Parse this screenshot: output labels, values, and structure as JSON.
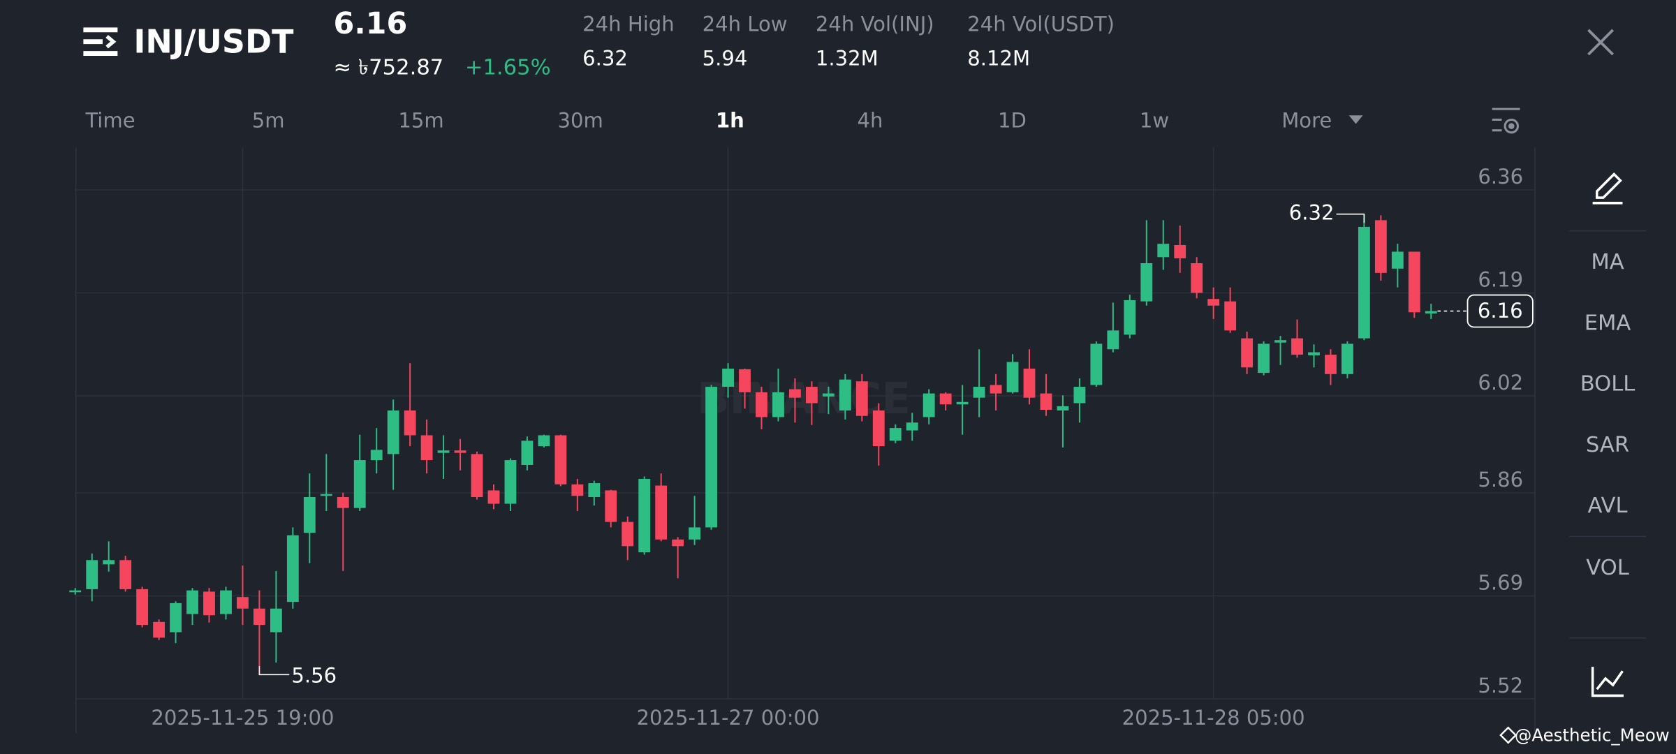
{
  "header": {
    "pair": "INJ/USDT",
    "price": "6.16",
    "fiat_price": "≈ ৳752.87",
    "change": "+1.65%",
    "stats": [
      {
        "label": "24h High",
        "value": "6.32"
      },
      {
        "label": "24h Low",
        "value": "5.94"
      },
      {
        "label": "24h Vol(INJ)",
        "value": "1.32M"
      },
      {
        "label": "24h Vol(USDT)",
        "value": "8.12M"
      }
    ]
  },
  "timeframes": [
    "Time",
    "5m",
    "15m",
    "30m",
    "1h",
    "4h",
    "1D",
    "1w",
    "More"
  ],
  "indicators": [
    "MA",
    "EMA",
    "BOLL",
    "SAR",
    "AVL",
    "VOL"
  ],
  "chart_watermark": "BINANCE",
  "credit": "@Aesthetic_Meow",
  "chart_data": {
    "type": "candlestick",
    "up_color": "#2ebd85",
    "down_color": "#f6465d",
    "grid": true,
    "ylim": [
      5.52,
      6.43
    ],
    "yticks": [
      5.52,
      5.69,
      5.86,
      6.02,
      6.19,
      6.36
    ],
    "categories": [
      null,
      null,
      null,
      null,
      null,
      null,
      null,
      null,
      null,
      null,
      "2025-11-25 19:00",
      null,
      null,
      null,
      null,
      null,
      null,
      null,
      null,
      null,
      null,
      null,
      null,
      null,
      null,
      null,
      null,
      null,
      null,
      null,
      null,
      null,
      null,
      null,
      null,
      null,
      null,
      null,
      null,
      "2025-11-27 00:00",
      null,
      null,
      null,
      null,
      null,
      null,
      null,
      null,
      null,
      null,
      null,
      null,
      null,
      null,
      null,
      null,
      null,
      null,
      null,
      null,
      null,
      null,
      null,
      null,
      null,
      null,
      null,
      null,
      "2025-11-28 05:00",
      null,
      null,
      null,
      null,
      null,
      null,
      null,
      null,
      null,
      null,
      null,
      null,
      null
    ],
    "open": [
      5.696,
      5.701,
      5.742,
      5.749,
      5.701,
      5.647,
      5.63,
      5.66,
      5.697,
      5.66,
      5.688,
      5.669,
      5.63,
      5.68,
      5.794,
      5.855,
      5.853,
      5.835,
      5.914,
      5.924,
      5.996,
      5.955,
      5.926,
      5.93,
      5.924,
      5.864,
      5.842,
      5.906,
      5.937,
      5.955,
      5.874,
      5.853,
      5.864,
      5.812,
      5.762,
      5.872,
      5.783,
      5.783,
      5.803,
      6.035,
      6.064,
      6.026,
      5.985,
      6.031,
      6.035,
      6.019,
      5.996,
      6.044,
      5.996,
      5.946,
      5.963,
      5.985,
      6.024,
      6.006,
      6.017,
      6.038,
      6.026,
      6.065,
      6.024,
      5.996,
      6.008,
      6.038,
      6.097,
      6.121,
      6.176,
      6.249,
      6.269,
      6.239,
      6.18,
      6.176,
      6.115,
      6.058,
      6.108,
      6.115,
      6.087,
      6.088,
      6.056,
      6.115,
      6.31,
      6.23,
      6.258,
      6.156
    ],
    "high": [
      5.703,
      5.76,
      5.78,
      5.756,
      5.705,
      5.651,
      5.681,
      5.703,
      5.703,
      5.705,
      5.74,
      5.699,
      5.731,
      5.803,
      5.892,
      5.924,
      5.86,
      5.956,
      5.967,
      6.014,
      6.074,
      5.981,
      5.955,
      5.949,
      5.928,
      5.874,
      5.917,
      5.953,
      5.956,
      5.956,
      5.883,
      5.88,
      5.865,
      5.821,
      5.887,
      5.892,
      5.787,
      5.855,
      6.038,
      6.074,
      6.065,
      6.035,
      6.065,
      6.049,
      6.044,
      6.035,
      6.056,
      6.056,
      6.008,
      5.973,
      5.992,
      6.031,
      6.026,
      6.038,
      6.097,
      6.056,
      6.089,
      6.097,
      6.056,
      6.021,
      6.049,
      6.11,
      6.174,
      6.187,
      6.31,
      6.31,
      6.301,
      6.249,
      6.199,
      6.199,
      6.126,
      6.11,
      6.119,
      6.146,
      6.105,
      6.097,
      6.11,
      6.32,
      6.318,
      6.271,
      6.258,
      6.172
    ],
    "low": [
      5.692,
      5.681,
      5.73,
      5.697,
      5.638,
      5.617,
      5.612,
      5.642,
      5.646,
      5.651,
      5.642,
      5.56,
      5.58,
      5.669,
      5.744,
      5.83,
      5.731,
      5.83,
      5.892,
      5.865,
      5.937,
      5.892,
      5.883,
      5.897,
      5.849,
      5.833,
      5.83,
      5.897,
      5.935,
      5.871,
      5.83,
      5.839,
      5.803,
      5.749,
      5.758,
      5.78,
      5.719,
      5.774,
      5.799,
      6.017,
      5.999,
      5.965,
      5.978,
      5.976,
      5.972,
      5.99,
      5.981,
      5.978,
      5.905,
      5.942,
      5.946,
      5.973,
      5.996,
      5.956,
      5.985,
      5.996,
      6.024,
      6.006,
      5.987,
      5.935,
      5.976,
      6.035,
      6.092,
      6.115,
      6.169,
      6.228,
      6.223,
      6.181,
      6.147,
      6.124,
      6.056,
      6.054,
      6.071,
      6.083,
      6.067,
      6.038,
      6.049,
      6.112,
      6.21,
      6.199,
      6.149,
      6.147
    ],
    "close": [
      5.699,
      5.749,
      5.749,
      5.701,
      5.642,
      5.621,
      5.678,
      5.699,
      5.658,
      5.699,
      5.669,
      5.642,
      5.669,
      5.79,
      5.853,
      5.858,
      5.835,
      5.914,
      5.931,
      5.996,
      5.955,
      5.914,
      5.93,
      5.926,
      5.853,
      5.842,
      5.914,
      5.946,
      5.955,
      5.874,
      5.855,
      5.876,
      5.812,
      5.772,
      5.883,
      5.783,
      5.772,
      5.803,
      6.035,
      6.065,
      6.026,
      5.985,
      6.026,
      6.017,
      6.008,
      6.024,
      6.047,
      5.987,
      5.937,
      5.967,
      5.976,
      6.024,
      6.006,
      6.01,
      6.035,
      6.024,
      6.076,
      6.017,
      5.997,
      6.003,
      6.035,
      6.106,
      6.128,
      6.178,
      6.239,
      6.271,
      6.247,
      6.19,
      6.169,
      6.128,
      6.067,
      6.106,
      6.112,
      6.088,
      6.092,
      6.056,
      6.106,
      6.299,
      6.223,
      6.258,
      6.158,
      6.16
    ]
  }
}
